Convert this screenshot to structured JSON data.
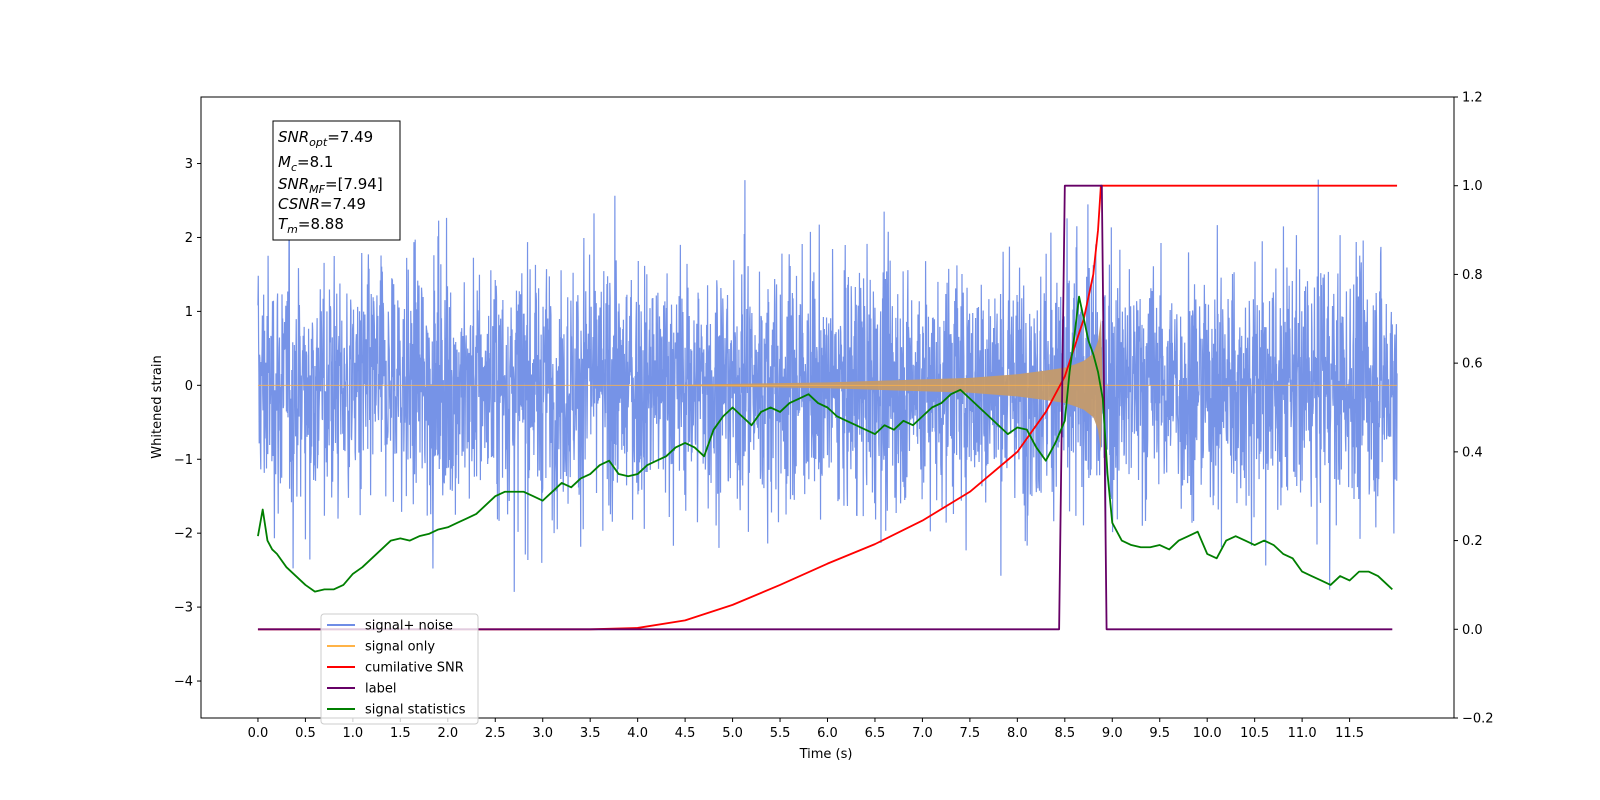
{
  "chart_data": {
    "type": "line",
    "xlabel": "Time (s)",
    "ylabel_left": "Whitened strain",
    "xlim": [
      -0.6,
      12.6
    ],
    "ylim_left": [
      -4.5,
      3.9
    ],
    "ylim_right": [
      -0.2,
      1.2
    ],
    "x_ticks": [
      "0.0",
      "0.5",
      "1.0",
      "1.5",
      "2.0",
      "2.5",
      "3.0",
      "3.5",
      "4.0",
      "4.5",
      "5.0",
      "5.5",
      "6.0",
      "6.5",
      "7.0",
      "7.5",
      "8.0",
      "8.5",
      "9.0",
      "9.5",
      "10.0",
      "10.5",
      "11.0",
      "11.5"
    ],
    "y_ticks_left": [
      "−4",
      "−3",
      "−2",
      "−1",
      "0",
      "1",
      "2",
      "3"
    ],
    "y_ticks_right": [
      "−0.2",
      "0.0",
      "0.2",
      "0.4",
      "0.6",
      "0.8",
      "1.0",
      "1.2"
    ],
    "annotation": {
      "snr_opt": "7.49",
      "mc": "8.1",
      "snr_mf": "[7.94]",
      "csnr": "7.49",
      "tm": "8.88"
    },
    "legend": [
      {
        "label": "signal+ noise",
        "color": "#6f8de6"
      },
      {
        "label": "signal only",
        "color": "#ffb347"
      },
      {
        "label": "cumilative SNR",
        "color": "#ff0000"
      },
      {
        "label": "label",
        "color": "#660066"
      },
      {
        "label": "signal statistics",
        "color": "#007f00"
      }
    ],
    "series": [
      {
        "name": "signal+ noise",
        "axis": "left",
        "color": "#6f8de6",
        "note": "white noise, amplitude about ±3, 0.0–12.0 s"
      },
      {
        "name": "signal only",
        "axis": "left",
        "color": "#ffb347",
        "envelope_x": [
          0.0,
          4.0,
          5.0,
          6.0,
          6.5,
          7.0,
          7.5,
          8.0,
          8.3,
          8.5,
          8.6,
          8.7,
          8.8,
          8.85,
          8.88,
          8.9,
          12.0
        ],
        "envelope_y": [
          0.0,
          0.0,
          0.02,
          0.04,
          0.06,
          0.08,
          0.1,
          0.15,
          0.2,
          0.24,
          0.28,
          0.33,
          0.43,
          0.6,
          0.9,
          0.0,
          0.0
        ]
      },
      {
        "name": "cumilative SNR",
        "axis": "right",
        "color": "#ff0000",
        "x": [
          0.0,
          3.5,
          4.0,
          4.5,
          5.0,
          5.5,
          6.0,
          6.5,
          7.0,
          7.5,
          8.0,
          8.3,
          8.5,
          8.7,
          8.8,
          8.85,
          8.88,
          8.9,
          12.0
        ],
        "y": [
          0.0,
          0.0,
          0.003,
          0.02,
          0.055,
          0.1,
          0.148,
          0.192,
          0.245,
          0.31,
          0.4,
          0.49,
          0.57,
          0.7,
          0.8,
          0.9,
          1.0,
          1.0,
          1.0
        ]
      },
      {
        "name": "label",
        "axis": "right",
        "color": "#660066",
        "x": [
          0.0,
          8.44,
          8.5,
          8.89,
          8.94,
          11.95
        ],
        "y": [
          0.0,
          0.0,
          1.0,
          1.0,
          0.0,
          0.0
        ]
      },
      {
        "name": "signal statistics",
        "axis": "right",
        "color": "#007f00",
        "x": [
          0.0,
          0.05,
          0.1,
          0.15,
          0.2,
          0.3,
          0.4,
          0.5,
          0.6,
          0.7,
          0.8,
          0.9,
          1.0,
          1.1,
          1.2,
          1.3,
          1.4,
          1.5,
          1.6,
          1.7,
          1.8,
          1.9,
          2.0,
          2.1,
          2.2,
          2.3,
          2.4,
          2.5,
          2.6,
          2.7,
          2.8,
          2.9,
          3.0,
          3.1,
          3.2,
          3.3,
          3.4,
          3.5,
          3.6,
          3.7,
          3.8,
          3.9,
          4.0,
          4.1,
          4.2,
          4.3,
          4.4,
          4.5,
          4.6,
          4.7,
          4.8,
          4.9,
          5.0,
          5.1,
          5.2,
          5.3,
          5.4,
          5.5,
          5.6,
          5.7,
          5.8,
          5.9,
          6.0,
          6.1,
          6.2,
          6.3,
          6.4,
          6.5,
          6.6,
          6.7,
          6.8,
          6.9,
          7.0,
          7.1,
          7.2,
          7.3,
          7.4,
          7.5,
          7.6,
          7.7,
          7.8,
          7.9,
          8.0,
          8.1,
          8.2,
          8.3,
          8.4,
          8.5,
          8.55,
          8.6,
          8.65,
          8.7,
          8.75,
          8.8,
          8.85,
          8.9,
          8.95,
          9.0,
          9.1,
          9.2,
          9.3,
          9.4,
          9.5,
          9.6,
          9.7,
          9.8,
          9.9,
          10.0,
          10.1,
          10.2,
          10.3,
          10.4,
          10.5,
          10.6,
          10.7,
          10.8,
          10.9,
          11.0,
          11.1,
          11.2,
          11.3,
          11.4,
          11.5,
          11.6,
          11.7,
          11.8,
          11.9,
          11.95
        ],
        "y": [
          0.21,
          0.27,
          0.2,
          0.18,
          0.17,
          0.14,
          0.12,
          0.1,
          0.085,
          0.09,
          0.09,
          0.1,
          0.125,
          0.14,
          0.16,
          0.18,
          0.2,
          0.205,
          0.2,
          0.21,
          0.215,
          0.225,
          0.23,
          0.24,
          0.25,
          0.26,
          0.28,
          0.3,
          0.31,
          0.31,
          0.31,
          0.3,
          0.29,
          0.31,
          0.33,
          0.32,
          0.34,
          0.35,
          0.37,
          0.38,
          0.35,
          0.345,
          0.35,
          0.37,
          0.38,
          0.39,
          0.41,
          0.42,
          0.41,
          0.39,
          0.45,
          0.48,
          0.5,
          0.48,
          0.46,
          0.49,
          0.5,
          0.49,
          0.51,
          0.52,
          0.53,
          0.51,
          0.5,
          0.48,
          0.47,
          0.46,
          0.45,
          0.44,
          0.46,
          0.45,
          0.47,
          0.46,
          0.48,
          0.5,
          0.51,
          0.53,
          0.54,
          0.52,
          0.5,
          0.48,
          0.46,
          0.44,
          0.455,
          0.45,
          0.41,
          0.38,
          0.42,
          0.47,
          0.58,
          0.66,
          0.75,
          0.7,
          0.65,
          0.62,
          0.58,
          0.52,
          0.35,
          0.24,
          0.2,
          0.19,
          0.185,
          0.185,
          0.19,
          0.18,
          0.2,
          0.21,
          0.22,
          0.17,
          0.16,
          0.2,
          0.21,
          0.2,
          0.19,
          0.2,
          0.19,
          0.17,
          0.16,
          0.13,
          0.12,
          0.11,
          0.1,
          0.12,
          0.11,
          0.13,
          0.13,
          0.12,
          0.1,
          0.09
        ]
      }
    ]
  }
}
